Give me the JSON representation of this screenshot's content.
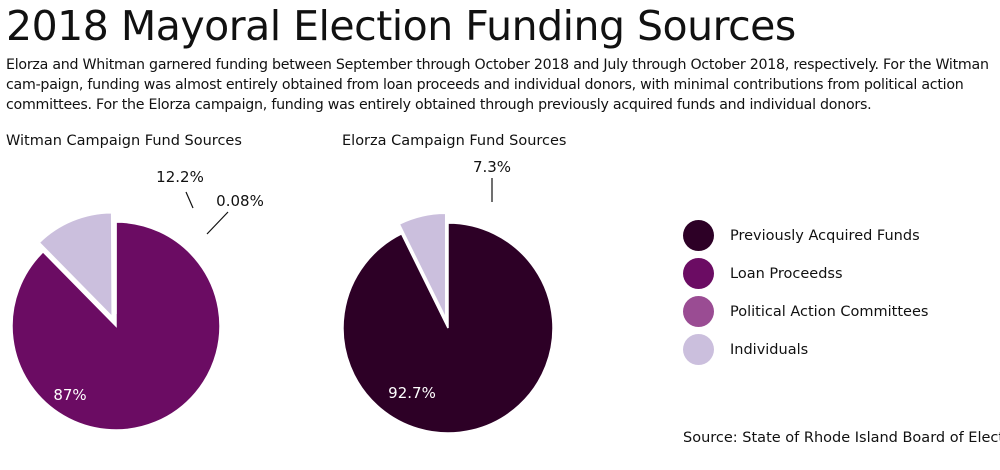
{
  "title": "2018 Mayoral Election Funding Sources",
  "description": "Elorza and Whitman garnered funding between September through October 2018 and July through October 2018, respectively. For the Witman cam-paign, funding was almost entirely obtained from loan proceeds and individual donors, with minimal contributions from political action committees. For the Elorza campaign, funding was entirely obtained through previously acquired funds and individual donors.",
  "source": "Source: State of Rhode Island Board of Elections",
  "colors": {
    "previously_acquired": "#2d0026",
    "loan_proceeds": "#6b0c63",
    "pac": "#9a4c93",
    "individuals": "#cbbfdd"
  },
  "legend": [
    {
      "label": "Previously Acquired Funds",
      "color": "#2d0026"
    },
    {
      "label": "Loan Proceedss",
      "color": "#6b0c63"
    },
    {
      "label": "Political Action Committees",
      "color": "#9a4c93"
    },
    {
      "label": "Individuals",
      "color": "#cbbfdd"
    }
  ],
  "chart_data": [
    {
      "type": "pie",
      "title": "Witman Campaign Fund Sources",
      "slices": [
        {
          "category": "Loan Proceedss",
          "value": 87,
          "label": "87%",
          "color": "#6b0c63"
        },
        {
          "category": "Individuals",
          "value": 12.2,
          "label": "12.2%",
          "color": "#cbbfdd"
        },
        {
          "category": "Political Action Committees",
          "value": 0.08,
          "label": "0.08%",
          "color": "#9a4c93"
        }
      ]
    },
    {
      "type": "pie",
      "title": "Elorza Campaign Fund Sources",
      "slices": [
        {
          "category": "Previously Acquired Funds",
          "value": 92.7,
          "label": "92.7%",
          "color": "#2d0026"
        },
        {
          "category": "Individuals",
          "value": 7.3,
          "label": "7.3%",
          "color": "#cbbfdd"
        }
      ]
    }
  ]
}
